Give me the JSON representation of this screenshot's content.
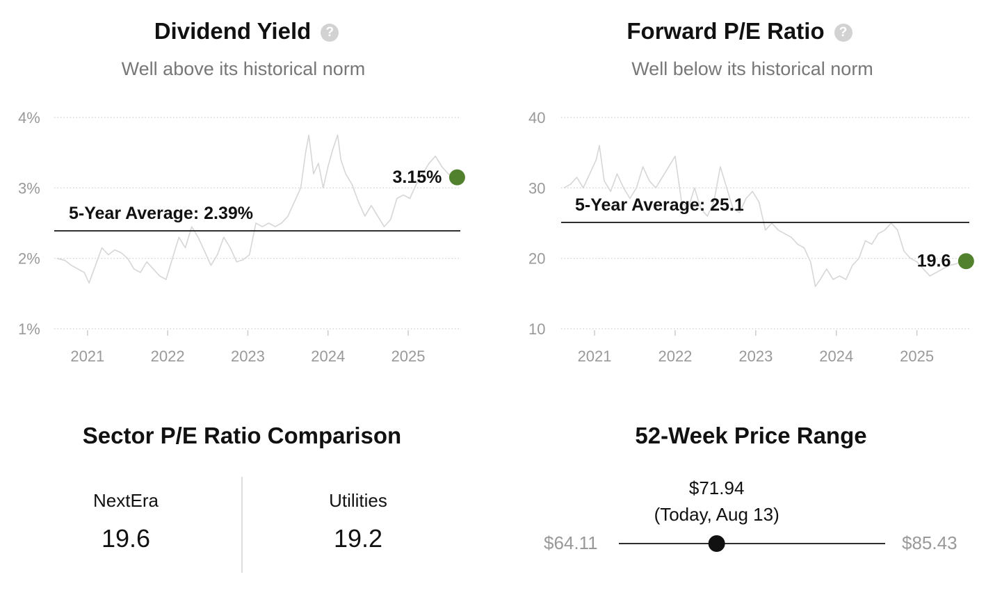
{
  "dividend_yield": {
    "title": "Dividend Yield",
    "subtitle": "Well above its historical norm",
    "average_label": "5-Year Average: 2.39%",
    "current_label": "3.15%"
  },
  "forward_pe": {
    "title": "Forward P/E Ratio",
    "subtitle": "Well below its historical norm",
    "average_label": "5-Year Average: 25.1",
    "current_label": "19.6"
  },
  "sector": {
    "title": "Sector P/E Ratio Comparison",
    "company_name": "NextEra",
    "company_value": "19.6",
    "sector_name": "Utilities",
    "sector_value": "19.2"
  },
  "price_range": {
    "title": "52-Week Price Range",
    "current_price": "$71.94",
    "current_note": "(Today, Aug 13)",
    "low_label": "$64.11",
    "high_label": "$85.43",
    "low": 64.11,
    "high": 85.43,
    "current": 71.94
  },
  "colors": {
    "current_point": "#52812e",
    "history_line": "#d6d6d6",
    "average_line": "#111111",
    "grid": "#cccccc",
    "tick_text": "#999999"
  },
  "chart_data": [
    {
      "type": "line",
      "title": "Dividend Yield",
      "y_tick_labels": [
        "1%",
        "2%",
        "3%",
        "4%"
      ],
      "y_ticks": [
        1,
        2,
        3,
        4
      ],
      "x_tick_labels": [
        "2021",
        "2022",
        "2023",
        "2024",
        "2025"
      ],
      "x_ticks": [
        2021,
        2022,
        2023,
        2024,
        2025
      ],
      "ylim": [
        1,
        4
      ],
      "xlim": [
        2020.62,
        2025.65
      ],
      "grid": true,
      "average": 2.39,
      "current": {
        "x": 2025.61,
        "y": 3.15
      },
      "series": [
        {
          "x": [
            2020.62,
            2020.72,
            2020.8,
            2020.88,
            2020.96,
            2021.02,
            2021.1,
            2021.18,
            2021.26,
            2021.34,
            2021.42,
            2021.5,
            2021.58,
            2021.66,
            2021.74,
            2021.82,
            2021.9,
            2021.98,
            2022.06,
            2022.14,
            2022.22,
            2022.3,
            2022.38,
            2022.46,
            2022.54,
            2022.62,
            2022.7,
            2022.78,
            2022.86,
            2022.94,
            2023.02,
            2023.1,
            2023.18,
            2023.26,
            2023.34,
            2023.42,
            2023.5,
            2023.58,
            2023.66,
            2023.72,
            2023.76,
            2023.82,
            2023.88,
            2023.94,
            2024.0,
            2024.06,
            2024.12,
            2024.16,
            2024.22,
            2024.3,
            2024.38,
            2024.46,
            2024.54,
            2024.62,
            2024.7,
            2024.78,
            2024.86,
            2024.94,
            2025.02,
            2025.1,
            2025.18,
            2025.26,
            2025.34,
            2025.42,
            2025.5,
            2025.58
          ],
          "values": [
            2.0,
            1.97,
            1.9,
            1.85,
            1.8,
            1.65,
            1.9,
            2.15,
            2.05,
            2.12,
            2.08,
            2.0,
            1.85,
            1.8,
            1.95,
            1.85,
            1.75,
            1.7,
            2.0,
            2.3,
            2.15,
            2.45,
            2.3,
            2.1,
            1.9,
            2.05,
            2.3,
            2.15,
            1.95,
            1.98,
            2.05,
            2.5,
            2.45,
            2.5,
            2.45,
            2.5,
            2.6,
            2.8,
            3.0,
            3.5,
            3.75,
            3.2,
            3.35,
            3.0,
            3.3,
            3.55,
            3.75,
            3.4,
            3.2,
            3.05,
            2.8,
            2.6,
            2.75,
            2.6,
            2.45,
            2.55,
            2.85,
            2.9,
            2.85,
            3.05,
            3.2,
            3.35,
            3.45,
            3.3,
            3.2,
            3.15
          ]
        }
      ]
    },
    {
      "type": "line",
      "title": "Forward P/E Ratio",
      "y_tick_labels": [
        "10",
        "20",
        "30",
        "40"
      ],
      "y_ticks": [
        10,
        20,
        30,
        40
      ],
      "x_tick_labels": [
        "2021",
        "2022",
        "2023",
        "2024",
        "2025"
      ],
      "x_ticks": [
        2021,
        2022,
        2023,
        2024,
        2025
      ],
      "ylim": [
        10,
        40
      ],
      "xlim": [
        2020.62,
        2025.65
      ],
      "grid": true,
      "average": 25.1,
      "current": {
        "x": 2025.61,
        "y": 19.6
      },
      "series": [
        {
          "x": [
            2020.62,
            2020.7,
            2020.78,
            2020.86,
            2020.94,
            2021.02,
            2021.06,
            2021.12,
            2021.2,
            2021.28,
            2021.36,
            2021.44,
            2021.52,
            2021.6,
            2021.68,
            2021.76,
            2021.84,
            2021.92,
            2022.0,
            2022.08,
            2022.16,
            2022.24,
            2022.32,
            2022.4,
            2022.48,
            2022.56,
            2022.64,
            2022.72,
            2022.8,
            2022.88,
            2022.96,
            2023.04,
            2023.12,
            2023.2,
            2023.28,
            2023.36,
            2023.44,
            2023.52,
            2023.6,
            2023.68,
            2023.74,
            2023.8,
            2023.88,
            2023.96,
            2024.04,
            2024.12,
            2024.2,
            2024.28,
            2024.36,
            2024.44,
            2024.52,
            2024.6,
            2024.68,
            2024.76,
            2024.84,
            2024.92,
            2025.0,
            2025.08,
            2025.16,
            2025.24,
            2025.32,
            2025.4,
            2025.48,
            2025.56
          ],
          "values": [
            30,
            30.5,
            31.5,
            30,
            32,
            34,
            36,
            31,
            29.5,
            32,
            30,
            28.5,
            30,
            33,
            31,
            30,
            31.5,
            33,
            34.5,
            28,
            27,
            30,
            27,
            26,
            28,
            33,
            30,
            27,
            26.5,
            28.5,
            29.5,
            28,
            24,
            25,
            24,
            23.5,
            23,
            22,
            21.5,
            19.5,
            16,
            17,
            18.5,
            17,
            17.5,
            17,
            19,
            20,
            22.5,
            22,
            23.5,
            24,
            25,
            24,
            21,
            20,
            19.5,
            18.5,
            17.5,
            18,
            18.5,
            19,
            19.2,
            19.6
          ]
        }
      ]
    }
  ]
}
